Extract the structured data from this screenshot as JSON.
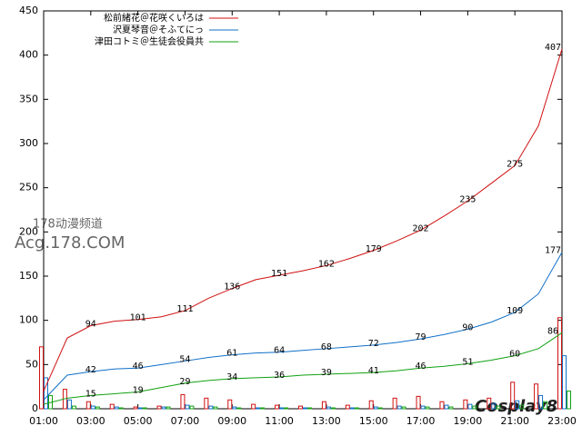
{
  "chart_data": [
    {
      "type": "line",
      "xlim": [
        1,
        23
      ],
      "ylim": [
        0,
        450
      ],
      "yticks": [
        0,
        50,
        100,
        150,
        200,
        250,
        300,
        350,
        400,
        450
      ],
      "xticks": [
        {
          "value": 1,
          "label": "01:00"
        },
        {
          "value": 3,
          "label": "03:00"
        },
        {
          "value": 5,
          "label": "05:00"
        },
        {
          "value": 7,
          "label": "07:00"
        },
        {
          "value": 9,
          "label": "09:00"
        },
        {
          "value": 11,
          "label": "11:00"
        },
        {
          "value": 13,
          "label": "13:00"
        },
        {
          "value": 15,
          "label": "15:00"
        },
        {
          "value": 17,
          "label": "17:00"
        },
        {
          "value": 19,
          "label": "19:00"
        },
        {
          "value": 21,
          "label": "21:00"
        },
        {
          "value": 23,
          "label": "23:00"
        }
      ],
      "x": [
        1,
        2,
        3,
        4,
        5,
        6,
        7,
        8,
        9,
        10,
        11,
        12,
        13,
        14,
        15,
        16,
        17,
        18,
        19,
        20,
        21,
        22,
        23
      ],
      "series": [
        {
          "name": "松前緒花＠花咲くいろは",
          "color": "#d01010",
          "values": [
            20,
            80,
            94,
            99,
            101,
            104,
            111,
            125,
            136,
            146,
            151,
            156,
            162,
            170,
            179,
            190,
            202,
            218,
            235,
            255,
            275,
            320,
            407
          ]
        },
        {
          "name": "沢夏琴音＠そふてにっ",
          "color": "#1070c8",
          "values": [
            10,
            38,
            42,
            45,
            46,
            50,
            54,
            58,
            61,
            63,
            64,
            66,
            68,
            70,
            72,
            75,
            79,
            84,
            90,
            98,
            109,
            130,
            177
          ]
        },
        {
          "name": "津田コトミ＠生徒会役員共",
          "color": "#10a010",
          "values": [
            5,
            12,
            15,
            17,
            19,
            24,
            29,
            32,
            34,
            35,
            36,
            38,
            39,
            40,
            41,
            43,
            46,
            48,
            51,
            55,
            60,
            68,
            86
          ]
        }
      ]
    },
    {
      "type": "bar",
      "x": [
        1,
        2,
        3,
        4,
        5,
        6,
        7,
        8,
        9,
        10,
        11,
        12,
        13,
        14,
        15,
        16,
        17,
        18,
        19,
        20,
        21,
        22,
        23
      ],
      "series": [
        {
          "color": "#d01010",
          "values": [
            70,
            22,
            8,
            5,
            2,
            3,
            16,
            12,
            10,
            5,
            4,
            3,
            8,
            4,
            9,
            12,
            14,
            8,
            10,
            12,
            30,
            28,
            103
          ]
        },
        {
          "color": "#1070c8",
          "values": [
            35,
            10,
            3,
            2,
            1,
            2,
            4,
            3,
            2,
            1,
            1,
            1,
            2,
            1,
            2,
            3,
            3,
            4,
            5,
            6,
            9,
            15,
            60
          ]
        },
        {
          "color": "#10a010",
          "values": [
            15,
            3,
            2,
            1,
            1,
            2,
            3,
            2,
            1,
            1,
            1,
            1,
            1,
            1,
            1,
            2,
            2,
            2,
            3,
            3,
            4,
            8,
            20
          ]
        }
      ]
    }
  ],
  "watermarks": [
    "178动漫频道",
    "Acg.178.COM",
    "Cosplay8"
  ]
}
